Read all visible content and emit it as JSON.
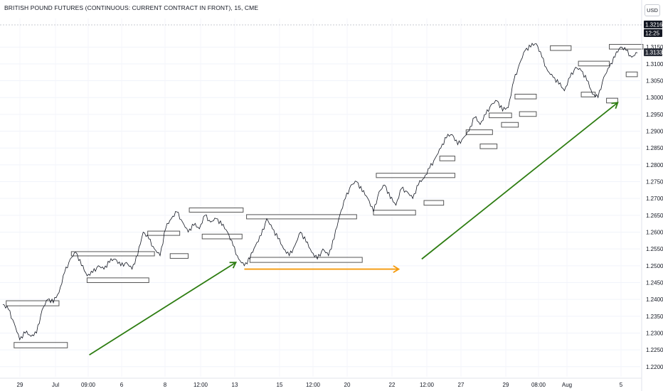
{
  "title": "BRITISH POUND FUTURES (CONTINUOUS: CURRENT CONTRACT IN FRONT), 15, CME",
  "currency_button": "USD",
  "price_tags": [
    {
      "label": "1.3216",
      "value": 1.3216,
      "bg": "#131722"
    },
    {
      "label": "12:25",
      "value": 1.3187,
      "bg": "#131722"
    },
    {
      "label": "1.3133",
      "value": 1.3133,
      "bg": "#2a2e39"
    }
  ],
  "chart_data": {
    "type": "line",
    "title": "BRITISH POUND FUTURES (CONTINUOUS: CURRENT CONTRACT IN FRONT), 15, CME",
    "y_ticks": [
      "1.2200",
      "1.2250",
      "1.2300",
      "1.2350",
      "1.2400",
      "1.2450",
      "1.2500",
      "1.2550",
      "1.2600",
      "1.2650",
      "1.2700",
      "1.2750",
      "1.2800",
      "1.2850",
      "1.2900",
      "1.2950",
      "1.3000",
      "1.3050",
      "1.3100",
      "1.3150"
    ],
    "ylim": [
      1.217,
      1.3235
    ],
    "x_ticks": [
      "29",
      "Jul",
      "09:00",
      "6",
      "8",
      "12:00",
      "13",
      "15",
      "12:00",
      "20",
      "22",
      "12:00",
      "27",
      "29",
      "08:00",
      "Aug",
      "5"
    ],
    "grid": true,
    "series": [
      {
        "color": "#131722",
        "points": [
          [
            0,
            1.2385
          ],
          [
            1,
            1.237
          ],
          [
            2,
            1.233
          ],
          [
            3,
            1.228
          ],
          [
            4,
            1.23
          ],
          [
            5,
            1.229
          ],
          [
            6,
            1.23
          ],
          [
            7,
            1.237
          ],
          [
            8,
            1.24
          ],
          [
            9,
            1.239
          ],
          [
            10,
            1.242
          ],
          [
            11,
            1.248
          ],
          [
            12,
            1.252
          ],
          [
            13,
            1.254
          ],
          [
            14,
            1.25
          ],
          [
            15,
            1.247
          ],
          [
            16,
            1.248
          ],
          [
            17,
            1.25
          ],
          [
            18,
            1.249
          ],
          [
            19,
            1.251
          ],
          [
            20,
            1.252
          ],
          [
            21,
            1.25
          ],
          [
            22,
            1.251
          ],
          [
            23,
            1.249
          ],
          [
            24,
            1.253
          ],
          [
            25,
            1.26
          ],
          [
            26,
            1.258
          ],
          [
            27,
            1.255
          ],
          [
            28,
            1.253
          ],
          [
            29,
            1.261
          ],
          [
            30,
            1.264
          ],
          [
            31,
            1.266
          ],
          [
            32,
            1.263
          ],
          [
            33,
            1.26
          ],
          [
            34,
            1.262
          ],
          [
            35,
            1.261
          ],
          [
            36,
            1.265
          ],
          [
            37,
            1.263
          ],
          [
            38,
            1.264
          ],
          [
            39,
            1.262
          ],
          [
            40,
            1.26
          ],
          [
            41,
            1.256
          ],
          [
            42,
            1.252
          ],
          [
            43,
            1.25
          ],
          [
            44,
            1.252
          ],
          [
            45,
            1.256
          ],
          [
            46,
            1.259
          ],
          [
            47,
            1.264
          ],
          [
            48,
            1.261
          ],
          [
            49,
            1.258
          ],
          [
            50,
            1.255
          ],
          [
            51,
            1.253
          ],
          [
            52,
            1.256
          ],
          [
            53,
            1.26
          ],
          [
            54,
            1.257
          ],
          [
            55,
            1.254
          ],
          [
            56,
            1.252
          ],
          [
            57,
            1.255
          ],
          [
            58,
            1.253
          ],
          [
            59,
            1.258
          ],
          [
            60,
            1.265
          ],
          [
            61,
            1.27
          ],
          [
            62,
            1.274
          ],
          [
            63,
            1.275
          ],
          [
            64,
            1.272
          ],
          [
            65,
            1.27
          ],
          [
            66,
            1.266
          ],
          [
            67,
            1.272
          ],
          [
            68,
            1.274
          ],
          [
            69,
            1.27
          ],
          [
            70,
            1.268
          ],
          [
            71,
            1.273
          ],
          [
            72,
            1.272
          ],
          [
            73,
            1.27
          ],
          [
            74,
            1.274
          ],
          [
            75,
            1.276
          ],
          [
            76,
            1.279
          ],
          [
            77,
            1.282
          ],
          [
            78,
            1.285
          ],
          [
            79,
            1.288
          ],
          [
            80,
            1.289
          ],
          [
            81,
            1.286
          ],
          [
            82,
            1.288
          ],
          [
            83,
            1.29
          ],
          [
            84,
            1.294
          ],
          [
            85,
            1.292
          ],
          [
            86,
            1.295
          ],
          [
            87,
            1.298
          ],
          [
            88,
            1.299
          ],
          [
            89,
            1.296
          ],
          [
            90,
            1.297
          ],
          [
            91,
            1.305
          ],
          [
            92,
            1.31
          ],
          [
            93,
            1.314
          ],
          [
            94,
            1.315
          ],
          [
            95,
            1.316
          ],
          [
            96,
            1.312
          ],
          [
            97,
            1.308
          ],
          [
            98,
            1.306
          ],
          [
            99,
            1.304
          ],
          [
            100,
            1.302
          ],
          [
            101,
            1.306
          ],
          [
            102,
            1.309
          ],
          [
            103,
            1.308
          ],
          [
            104,
            1.305
          ],
          [
            105,
            1.301
          ],
          [
            106,
            1.3
          ],
          [
            107,
            1.306
          ],
          [
            108,
            1.309
          ],
          [
            109,
            1.312
          ],
          [
            110,
            1.315
          ],
          [
            111,
            1.314
          ],
          [
            112,
            1.312
          ],
          [
            113,
            1.3133
          ]
        ]
      }
    ],
    "annotations": {
      "zones": [
        {
          "x0": 0.6,
          "x1": 10.0,
          "y0": 1.2381,
          "y1": 1.2396,
          "color": "#555555"
        },
        {
          "x0": 2.0,
          "x1": 11.5,
          "y0": 1.2256,
          "y1": 1.2272,
          "color": "#555555"
        },
        {
          "x0": 12.2,
          "x1": 27.0,
          "y0": 1.253,
          "y1": 1.2542,
          "color": "#555555"
        },
        {
          "x0": 15.0,
          "x1": 26.0,
          "y0": 1.245,
          "y1": 1.2464,
          "color": "#555555"
        },
        {
          "x0": 25.8,
          "x1": 31.5,
          "y0": 1.2591,
          "y1": 1.2603,
          "color": "#555555"
        },
        {
          "x0": 29.8,
          "x1": 33.0,
          "y0": 1.2522,
          "y1": 1.2536,
          "color": "#555555"
        },
        {
          "x0": 33.2,
          "x1": 42.8,
          "y0": 1.266,
          "y1": 1.2672,
          "color": "#555555"
        },
        {
          "x0": 35.5,
          "x1": 42.6,
          "y0": 1.258,
          "y1": 1.2594,
          "color": "#555555"
        },
        {
          "x0": 43.4,
          "x1": 63.0,
          "y0": 1.264,
          "y1": 1.2652,
          "color": "#555555"
        },
        {
          "x0": 44.0,
          "x1": 64.0,
          "y0": 1.251,
          "y1": 1.2525,
          "color": "#555555"
        },
        {
          "x0": 66.5,
          "x1": 80.5,
          "y0": 1.2762,
          "y1": 1.2775,
          "color": "#555555"
        },
        {
          "x0": 66.0,
          "x1": 73.5,
          "y0": 1.2651,
          "y1": 1.2665,
          "color": "#555555"
        },
        {
          "x0": 75.0,
          "x1": 78.5,
          "y0": 1.268,
          "y1": 1.2694,
          "color": "#555555"
        },
        {
          "x0": 77.8,
          "x1": 80.5,
          "y0": 1.2812,
          "y1": 1.2826,
          "color": "#555555"
        },
        {
          "x0": 82.5,
          "x1": 87.2,
          "y0": 1.289,
          "y1": 1.2904,
          "color": "#555555"
        },
        {
          "x0": 85.0,
          "x1": 88.0,
          "y0": 1.2848,
          "y1": 1.2862,
          "color": "#555555"
        },
        {
          "x0": 86.6,
          "x1": 90.6,
          "y0": 1.294,
          "y1": 1.2954,
          "color": "#555555"
        },
        {
          "x0": 88.8,
          "x1": 91.8,
          "y0": 1.2912,
          "y1": 1.2926,
          "color": "#555555"
        },
        {
          "x0": 91.2,
          "x1": 95.0,
          "y0": 1.2996,
          "y1": 1.301,
          "color": "#555555"
        },
        {
          "x0": 92.0,
          "x1": 95.0,
          "y0": 1.2944,
          "y1": 1.2958,
          "color": "#555555"
        },
        {
          "x0": 97.5,
          "x1": 101.2,
          "y0": 1.314,
          "y1": 1.3154,
          "color": "#555555"
        },
        {
          "x0": 102.5,
          "x1": 108.0,
          "y0": 1.3094,
          "y1": 1.3108,
          "color": "#555555"
        },
        {
          "x0": 103.0,
          "x1": 105.5,
          "y0": 1.3002,
          "y1": 1.3016,
          "color": "#555555"
        },
        {
          "x0": 108.0,
          "x1": 114.0,
          "y0": 1.3144,
          "y1": 1.3158,
          "color": "#555555"
        },
        {
          "x0": 107.5,
          "x1": 109.5,
          "y0": 1.2984,
          "y1": 1.2998,
          "color": "#555555"
        },
        {
          "x0": 111.0,
          "x1": 113.0,
          "y0": 1.3062,
          "y1": 1.3076,
          "color": "#555555"
        }
      ],
      "arrows": [
        {
          "x0": 15.4,
          "y0": 1.2235,
          "x1": 41.5,
          "y1": 1.251,
          "color": "#2e7d12"
        },
        {
          "x0": 43.0,
          "y0": 1.249,
          "x1": 70.5,
          "y1": 1.249,
          "color": "#f59a0c"
        },
        {
          "x0": 74.6,
          "y0": 1.252,
          "x1": 109.5,
          "y1": 1.2985,
          "color": "#2e7d12"
        }
      ]
    }
  }
}
